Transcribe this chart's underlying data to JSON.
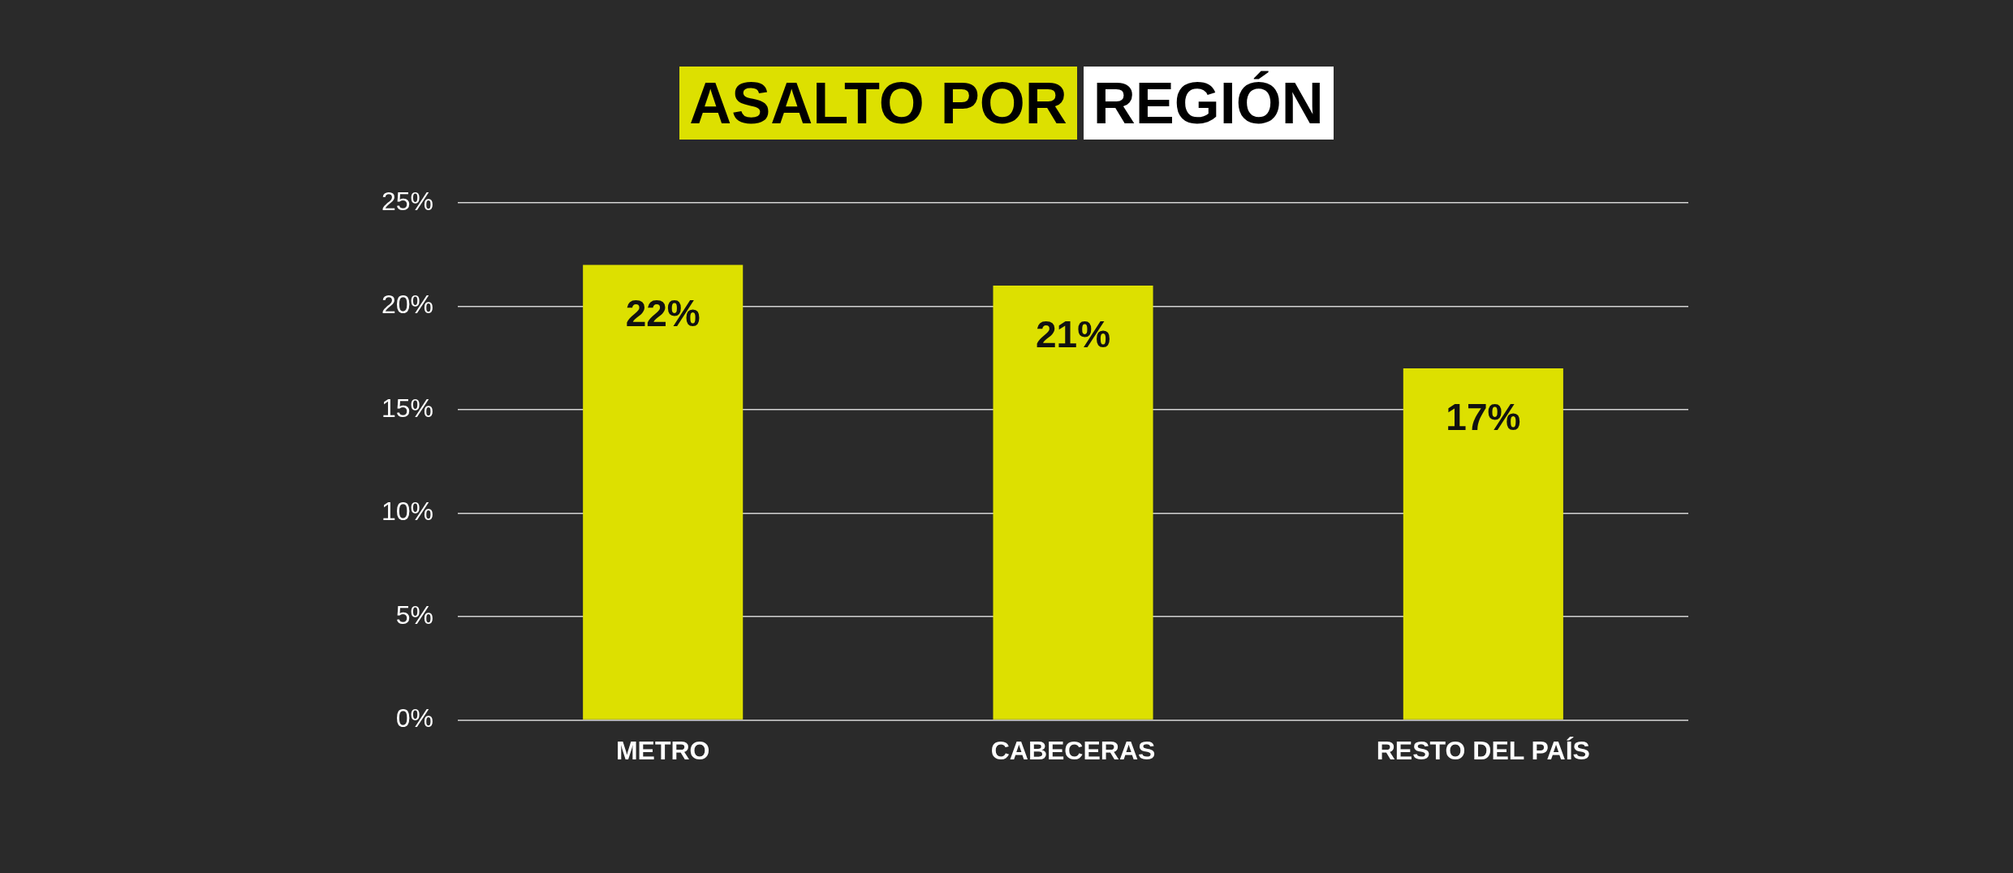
{
  "chart_data": {
    "type": "bar",
    "title": "ASALTO POR REGIÓN",
    "categories": [
      "METRO",
      "CABECERAS",
      "RESTO DEL PAÍS"
    ],
    "values": [
      22,
      21,
      17
    ],
    "value_labels": [
      "22%",
      "21%",
      "17%"
    ],
    "color": "#dde000",
    "ylim": [
      0,
      25
    ],
    "yticks": [
      {
        "value": 0,
        "label": "0%"
      },
      {
        "value": 5,
        "label": "5%"
      },
      {
        "value": 10,
        "label": "10%"
      },
      {
        "value": 15,
        "label": "15%"
      },
      {
        "value": 20,
        "label": "20%"
      },
      {
        "value": 25,
        "label": "25%"
      }
    ],
    "grid": "y",
    "legend": false
  }
}
